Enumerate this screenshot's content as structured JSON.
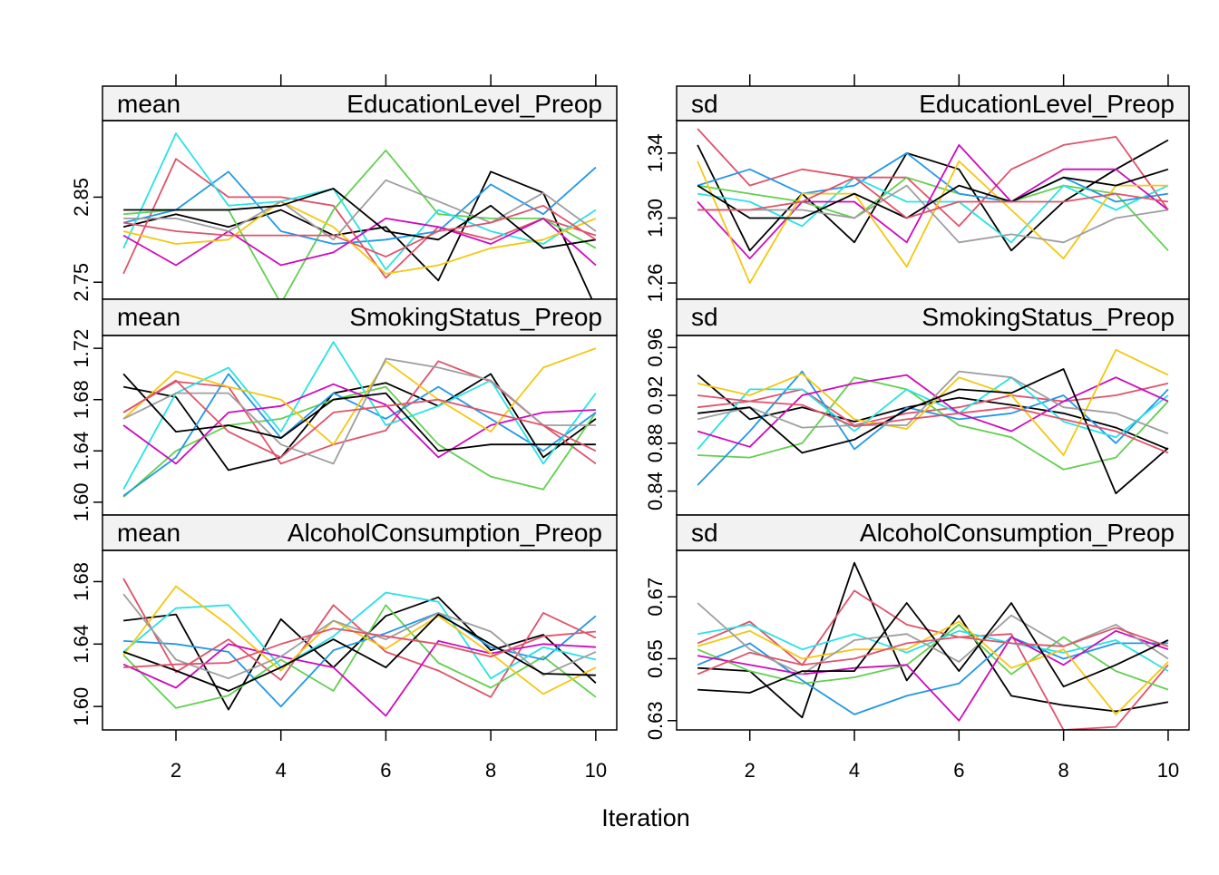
{
  "chart_data": {
    "type": "line",
    "xlabel": "Iteration",
    "x": [
      1,
      2,
      3,
      4,
      5,
      6,
      7,
      8,
      9,
      10
    ],
    "x_ticks": [
      "2",
      "4",
      "6",
      "8",
      "10"
    ],
    "x_tick_values": [
      2,
      4,
      6,
      8,
      10
    ],
    "xlim": [
      0.6,
      10.4
    ],
    "colors": [
      "#000000",
      "#DF536B",
      "#61D04F",
      "#2297E6",
      "#28E2E5",
      "#CD0BBC",
      "#F5C710",
      "#9E9E9E",
      "#000000",
      "#DF536B",
      "#61D04F",
      "#2297E6",
      "#28E2E5",
      "#CD0BBC",
      "#F5C710"
    ],
    "grid": false,
    "legend": "none",
    "panels": [
      {
        "stat": "mean",
        "variable": "EducationLevel_Preop",
        "ylim": [
          2.73,
          2.94
        ],
        "y_ticks": [
          "2.75",
          "2.85"
        ],
        "y_tick_values": [
          2.75,
          2.85
        ],
        "series": [
          {
            "values": [
              2.815,
              2.83,
              2.815,
              2.835,
              2.805,
              2.815,
              2.752,
              2.88,
              2.855,
              2.72
            ]
          },
          {
            "values": [
              2.76,
              2.895,
              2.85,
              2.85,
              2.84,
              2.755,
              2.815,
              2.8,
              2.825,
              2.805
            ]
          },
          {
            "values": [
              2.83,
              2.835,
              2.835,
              2.725,
              2.835,
              2.905,
              2.83,
              2.825,
              2.825,
              2.79
            ]
          },
          {
            "values": [
              2.82,
              2.835,
              2.88,
              2.81,
              2.795,
              2.8,
              2.81,
              2.865,
              2.83,
              2.885
            ]
          },
          {
            "values": [
              2.79,
              2.925,
              2.84,
              2.845,
              2.86,
              2.765,
              2.835,
              2.81,
              2.795,
              2.835
            ]
          },
          {
            "values": [
              2.805,
              2.77,
              2.81,
              2.77,
              2.785,
              2.825,
              2.815,
              2.795,
              2.825,
              2.77
            ]
          },
          {
            "values": [
              2.81,
              2.795,
              2.8,
              2.845,
              2.815,
              2.76,
              2.77,
              2.79,
              2.8,
              2.825
            ]
          },
          {
            "values": [
              2.825,
              2.825,
              2.81,
              2.845,
              2.8,
              2.87,
              2.845,
              2.82,
              2.855,
              2.81
            ]
          },
          {
            "values": [
              2.835,
              2.835,
              2.835,
              2.84,
              2.86,
              2.81,
              2.8,
              2.84,
              2.79,
              2.8
            ]
          },
          {
            "values": [
              2.82,
              2.81,
              2.805,
              2.805,
              2.805,
              2.78,
              2.81,
              2.82,
              2.84,
              2.8
            ]
          }
        ]
      },
      {
        "stat": "sd",
        "variable": "EducationLevel_Preop",
        "ylim": [
          1.25,
          1.36
        ],
        "y_ticks": [
          "1.26",
          "1.30",
          "1.34"
        ],
        "y_tick_values": [
          1.26,
          1.3,
          1.34
        ],
        "series": [
          {
            "values": [
              1.345,
              1.28,
              1.315,
              1.285,
              1.34,
              1.33,
              1.28,
              1.31,
              1.33,
              1.348
            ]
          },
          {
            "values": [
              1.355,
              1.32,
              1.33,
              1.325,
              1.325,
              1.295,
              1.33,
              1.345,
              1.35,
              1.305
            ]
          },
          {
            "values": [
              1.32,
              1.315,
              1.31,
              1.3,
              1.325,
              1.315,
              1.31,
              1.32,
              1.315,
              1.28
            ]
          },
          {
            "values": [
              1.32,
              1.33,
              1.315,
              1.32,
              1.34,
              1.315,
              1.31,
              1.325,
              1.31,
              1.315
            ]
          },
          {
            "values": [
              1.315,
              1.31,
              1.295,
              1.325,
              1.31,
              1.31,
              1.285,
              1.32,
              1.305,
              1.32
            ]
          },
          {
            "values": [
              1.31,
              1.275,
              1.31,
              1.31,
              1.285,
              1.345,
              1.31,
              1.33,
              1.33,
              1.305
            ]
          },
          {
            "values": [
              1.335,
              1.26,
              1.315,
              1.315,
              1.27,
              1.335,
              1.305,
              1.275,
              1.32,
              1.32
            ]
          },
          {
            "values": [
              1.305,
              1.305,
              1.305,
              1.3,
              1.32,
              1.285,
              1.29,
              1.285,
              1.3,
              1.305
            ]
          },
          {
            "values": [
              1.32,
              1.3,
              1.3,
              1.315,
              1.3,
              1.32,
              1.31,
              1.325,
              1.32,
              1.33
            ]
          },
          {
            "values": [
              1.305,
              1.305,
              1.31,
              1.325,
              1.3,
              1.31,
              1.31,
              1.31,
              1.315,
              1.31
            ]
          }
        ]
      },
      {
        "stat": "mean",
        "variable": "SmokingStatus_Preop",
        "ylim": [
          1.59,
          1.73
        ],
        "y_ticks": [
          "1.60",
          "1.64",
          "1.68",
          "1.72"
        ],
        "y_tick_values": [
          1.6,
          1.64,
          1.68,
          1.72
        ],
        "series": [
          {
            "values": [
              1.69,
              1.682,
              1.625,
              1.635,
              1.685,
              1.693,
              1.675,
              1.7,
              1.635,
              1.665
            ]
          },
          {
            "values": [
              1.67,
              1.694,
              1.69,
              1.63,
              1.645,
              1.656,
              1.71,
              1.694,
              1.66,
              1.63
            ]
          },
          {
            "values": [
              1.604,
              1.64,
              1.66,
              1.665,
              1.68,
              1.69,
              1.645,
              1.62,
              1.61,
              1.67
            ]
          },
          {
            "values": [
              1.605,
              1.635,
              1.7,
              1.65,
              1.685,
              1.665,
              1.69,
              1.665,
              1.64,
              1.67
            ]
          },
          {
            "values": [
              1.61,
              1.685,
              1.705,
              1.655,
              1.725,
              1.66,
              1.675,
              1.695,
              1.63,
              1.685
            ]
          },
          {
            "values": [
              1.66,
              1.63,
              1.67,
              1.675,
              1.692,
              1.676,
              1.635,
              1.66,
              1.67,
              1.672
            ]
          },
          {
            "values": [
              1.665,
              1.702,
              1.69,
              1.68,
              1.645,
              1.71,
              1.68,
              1.655,
              1.705,
              1.72
            ]
          },
          {
            "values": [
              1.665,
              1.685,
              1.685,
              1.645,
              1.63,
              1.712,
              1.705,
              1.695,
              1.66,
              1.66
            ]
          },
          {
            "values": [
              1.7,
              1.655,
              1.66,
              1.65,
              1.68,
              1.685,
              1.64,
              1.645,
              1.645,
              1.645
            ]
          },
          {
            "values": [
              1.67,
              1.695,
              1.655,
              1.635,
              1.67,
              1.675,
              1.68,
              1.67,
              1.66,
              1.64
            ]
          }
        ]
      },
      {
        "stat": "sd",
        "variable": "SmokingStatus_Preop",
        "ylim": [
          0.82,
          0.97
        ],
        "y_ticks": [
          "0.84",
          "0.88",
          "0.92",
          "0.96"
        ],
        "y_tick_values": [
          0.84,
          0.88,
          0.92,
          0.96
        ],
        "series": [
          {
            "values": [
              0.937,
              0.9,
              0.91,
              0.898,
              0.91,
              0.918,
              0.912,
              0.905,
              0.893,
              0.875
            ]
          },
          {
            "values": [
              0.91,
              0.915,
              0.925,
              0.895,
              0.905,
              0.91,
              0.92,
              0.915,
              0.92,
              0.93
            ]
          },
          {
            "values": [
              0.87,
              0.868,
              0.88,
              0.935,
              0.925,
              0.895,
              0.885,
              0.858,
              0.868,
              0.915
            ]
          },
          {
            "values": [
              0.845,
              0.89,
              0.94,
              0.875,
              0.91,
              0.9,
              0.905,
              0.92,
              0.88,
              0.925
            ]
          },
          {
            "values": [
              0.875,
              0.925,
              0.925,
              0.89,
              0.925,
              0.905,
              0.935,
              0.898,
              0.885,
              0.92
            ]
          },
          {
            "values": [
              0.89,
              0.877,
              0.92,
              0.93,
              0.937,
              0.905,
              0.89,
              0.915,
              0.935,
              0.915
            ]
          },
          {
            "values": [
              0.93,
              0.92,
              0.938,
              0.9,
              0.892,
              0.935,
              0.92,
              0.87,
              0.958,
              0.937
            ]
          },
          {
            "values": [
              0.9,
              0.91,
              0.893,
              0.895,
              0.895,
              0.94,
              0.935,
              0.91,
              0.905,
              0.888
            ]
          },
          {
            "values": [
              0.905,
              0.91,
              0.872,
              0.883,
              0.908,
              0.925,
              0.922,
              0.942,
              0.838,
              0.876
            ]
          },
          {
            "values": [
              0.92,
              0.915,
              0.912,
              0.894,
              0.9,
              0.905,
              0.91,
              0.9,
              0.89,
              0.872
            ]
          }
        ]
      },
      {
        "stat": "mean",
        "variable": "AlcoholConsumption_Preop",
        "ylim": [
          1.585,
          1.7
        ],
        "y_ticks": [
          "1.60",
          "1.64",
          "1.68"
        ],
        "y_tick_values": [
          1.6,
          1.64,
          1.68
        ],
        "series": [
          {
            "values": [
              1.655,
              1.659,
              1.598,
              1.656,
              1.625,
              1.658,
              1.67,
              1.636,
              1.646,
              1.615
            ]
          },
          {
            "values": [
              1.682,
              1.622,
              1.643,
              1.617,
              1.665,
              1.635,
              1.623,
              1.606,
              1.66,
              1.644
            ]
          },
          {
            "values": [
              1.633,
              1.599,
              1.607,
              1.63,
              1.61,
              1.665,
              1.628,
              1.612,
              1.632,
              1.606
            ]
          },
          {
            "values": [
              1.642,
              1.64,
              1.635,
              1.6,
              1.636,
              1.647,
              1.66,
              1.638,
              1.63,
              1.658
            ]
          },
          {
            "values": [
              1.635,
              1.663,
              1.665,
              1.625,
              1.645,
              1.673,
              1.667,
              1.618,
              1.638,
              1.63
            ]
          },
          {
            "values": [
              1.627,
              1.612,
              1.64,
              1.632,
              1.625,
              1.594,
              1.642,
              1.634,
              1.64,
              1.638
            ]
          },
          {
            "values": [
              1.633,
              1.677,
              1.652,
              1.623,
              1.655,
              1.637,
              1.658,
              1.634,
              1.608,
              1.625
            ]
          },
          {
            "values": [
              1.672,
              1.63,
              1.618,
              1.632,
              1.655,
              1.643,
              1.66,
              1.648,
              1.62,
              1.635
            ]
          },
          {
            "values": [
              1.635,
              1.623,
              1.61,
              1.625,
              1.643,
              1.625,
              1.659,
              1.64,
              1.621,
              1.62
            ]
          },
          {
            "values": [
              1.625,
              1.627,
              1.628,
              1.64,
              1.65,
              1.645,
              1.64,
              1.632,
              1.645,
              1.648
            ]
          }
        ]
      },
      {
        "stat": "sd",
        "variable": "AlcoholConsumption_Preop",
        "ylim": [
          0.627,
          0.685
        ],
        "y_ticks": [
          "0.63",
          "0.65",
          "0.67"
        ],
        "y_tick_values": [
          0.63,
          0.65,
          0.67
        ],
        "series": [
          {
            "values": [
              0.647,
              0.646,
              0.631,
              0.681,
              0.643,
              0.664,
              0.638,
              0.635,
              0.633,
              0.636
            ]
          },
          {
            "values": [
              0.655,
              0.662,
              0.648,
              0.672,
              0.661,
              0.657,
              0.658,
              0.627,
              0.628,
              0.648
            ]
          },
          {
            "values": [
              0.653,
              0.646,
              0.642,
              0.644,
              0.648,
              0.661,
              0.645,
              0.657,
              0.646,
              0.64
            ]
          },
          {
            "values": [
              0.648,
              0.655,
              0.643,
              0.632,
              0.638,
              0.642,
              0.657,
              0.65,
              0.655,
              0.655
            ]
          },
          {
            "values": [
              0.658,
              0.661,
              0.653,
              0.658,
              0.652,
              0.659,
              0.655,
              0.652,
              0.656,
              0.646
            ]
          },
          {
            "values": [
              0.651,
              0.648,
              0.645,
              0.647,
              0.648,
              0.63,
              0.657,
              0.648,
              0.659,
              0.653
            ]
          },
          {
            "values": [
              0.654,
              0.659,
              0.65,
              0.653,
              0.653,
              0.662,
              0.647,
              0.653,
              0.632,
              0.649
            ]
          },
          {
            "values": [
              0.668,
              0.653,
              0.645,
              0.656,
              0.658,
              0.649,
              0.664,
              0.654,
              0.661,
              0.65
            ]
          },
          {
            "values": [
              0.64,
              0.639,
              0.646,
              0.646,
              0.668,
              0.646,
              0.668,
              0.641,
              0.648,
              0.656
            ]
          },
          {
            "values": [
              0.645,
              0.652,
              0.648,
              0.65,
              0.655,
              0.657,
              0.655,
              0.654,
              0.66,
              0.654
            ]
          }
        ]
      }
    ]
  }
}
